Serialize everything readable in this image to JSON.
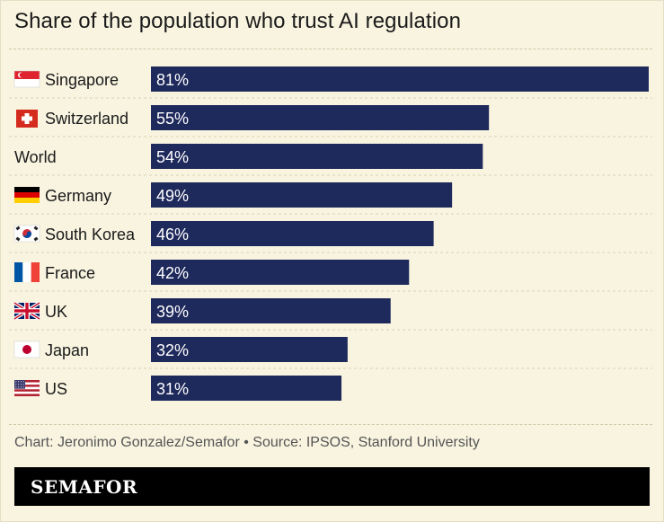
{
  "chart_data": {
    "type": "bar",
    "orientation": "horizontal",
    "title": "Share of the population who trust AI regulation",
    "categories": [
      "Singapore",
      "Switzerland",
      "World",
      "Germany",
      "South Korea",
      "France",
      "UK",
      "Japan",
      "US"
    ],
    "values": [
      81,
      55,
      54,
      49,
      46,
      42,
      39,
      32,
      31
    ],
    "value_labels": [
      "81%",
      "55%",
      "54%",
      "49%",
      "46%",
      "42%",
      "39%",
      "32%",
      "31%"
    ],
    "flags": [
      "singapore-flag-icon",
      "switzerland-flag-icon",
      "",
      "germany-flag-icon",
      "south-korea-flag-icon",
      "france-flag-icon",
      "uk-flag-icon",
      "japan-flag-icon",
      "us-flag-icon"
    ],
    "xlim": [
      0,
      81
    ],
    "grid": false,
    "legend": "none",
    "bar_color": "#1f2a5c",
    "value_label_color": "#ffffff"
  },
  "footer": {
    "credit": "Chart: Jeronimo Gonzalez/Semafor • Source: IPSOS, Stanford University"
  },
  "brand": {
    "name": "SEMAFOR"
  },
  "colors": {
    "background": "#f8f4e0",
    "brand_bar": "#000000"
  }
}
